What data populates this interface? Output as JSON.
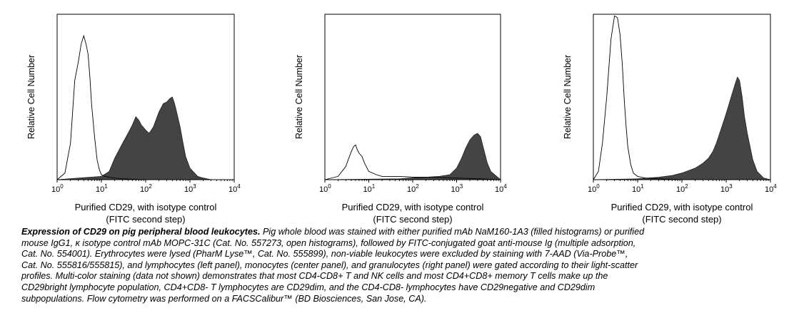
{
  "chart_data": [
    {
      "type": "area",
      "panel": "left",
      "ylabel": "Relative Cell Number",
      "xlabel_line1": "Purified CD29, with isotype control",
      "xlabel_line2": "(FITC second step)",
      "x_scale": "log",
      "xlim": [
        1,
        10000
      ],
      "ylim": [
        0,
        1
      ],
      "x_ticks": [
        {
          "base": "10",
          "exp": "0"
        },
        {
          "base": "10",
          "exp": "1"
        },
        {
          "base": "10",
          "exp": "2"
        },
        {
          "base": "10",
          "exp": "3"
        },
        {
          "base": "10",
          "exp": "4"
        }
      ],
      "series": [
        {
          "role": "isotype-control-open",
          "x": [
            1.0,
            1.5,
            2.0,
            2.5,
            3.0,
            3.5,
            4.0,
            4.5,
            5.0,
            5.5,
            6.0,
            7.0,
            8.0,
            9.0,
            10.0,
            12.0,
            15.0,
            20.0,
            30.0,
            50.0,
            100.0,
            10000.0
          ],
          "y": [
            0.0,
            0.04,
            0.22,
            0.6,
            0.71,
            0.82,
            0.87,
            0.82,
            0.76,
            0.62,
            0.46,
            0.26,
            0.12,
            0.06,
            0.03,
            0.02,
            0.015,
            0.01,
            0.005,
            0.003,
            0.0,
            0.0
          ]
        },
        {
          "role": "cd29-filled",
          "x": [
            1.0,
            10.0,
            15.0,
            20.0,
            30.0,
            40.0,
            50.0,
            60.0,
            70.0,
            80.0,
            100.0,
            120.0,
            150.0,
            200.0,
            250.0,
            300.0,
            350.0,
            400.0,
            450.0,
            500.0,
            600.0,
            700.0,
            800.0,
            1000.0,
            1500.0,
            2000.0,
            3000.0,
            10000.0
          ],
          "y": [
            0.0,
            0.02,
            0.05,
            0.13,
            0.22,
            0.28,
            0.33,
            0.38,
            0.36,
            0.33,
            0.3,
            0.28,
            0.32,
            0.41,
            0.46,
            0.47,
            0.49,
            0.5,
            0.46,
            0.41,
            0.32,
            0.22,
            0.14,
            0.07,
            0.02,
            0.01,
            0.0,
            0.0
          ]
        }
      ]
    },
    {
      "type": "area",
      "panel": "center",
      "ylabel": "Relative Cell Number",
      "xlabel_line1": "Purified CD29, with isotype control",
      "xlabel_line2": "(FITC second step)",
      "x_scale": "log",
      "xlim": [
        1,
        10000
      ],
      "ylim": [
        0,
        1
      ],
      "x_ticks": [
        {
          "base": "10",
          "exp": "0"
        },
        {
          "base": "10",
          "exp": "1"
        },
        {
          "base": "10",
          "exp": "2"
        },
        {
          "base": "10",
          "exp": "3"
        },
        {
          "base": "10",
          "exp": "4"
        }
      ],
      "series": [
        {
          "role": "isotype-control-open",
          "x": [
            1.0,
            2.0,
            3.0,
            3.5,
            4.0,
            4.5,
            5.0,
            5.5,
            6.0,
            7.0,
            8.0,
            10.0,
            15.0,
            20.0,
            50.0,
            100.0,
            300.0,
            1000.0,
            10000.0
          ],
          "y": [
            0.0,
            0.02,
            0.08,
            0.13,
            0.17,
            0.2,
            0.21,
            0.18,
            0.16,
            0.14,
            0.1,
            0.05,
            0.03,
            0.02,
            0.02,
            0.015,
            0.015,
            0.01,
            0.0
          ]
        },
        {
          "role": "cd29-filled",
          "x": [
            1.0,
            50.0,
            100.0,
            200.0,
            400.0,
            700.0,
            1000.0,
            1300.0,
            1600.0,
            2000.0,
            2500.0,
            3000.0,
            3500.0,
            4000.0,
            5000.0,
            6000.0,
            10000.0
          ],
          "y": [
            0.0,
            0.005,
            0.01,
            0.015,
            0.02,
            0.03,
            0.07,
            0.13,
            0.19,
            0.24,
            0.27,
            0.28,
            0.26,
            0.2,
            0.1,
            0.05,
            0.0
          ]
        }
      ]
    },
    {
      "type": "area",
      "panel": "right",
      "ylabel": "Relative Cell Number",
      "xlabel_line1": "Purified CD29, with isotype control",
      "xlabel_line2": "(FITC second step)",
      "x_scale": "log",
      "xlim": [
        1,
        10000
      ],
      "ylim": [
        0,
        1
      ],
      "x_ticks": [
        {
          "base": "10",
          "exp": "0"
        },
        {
          "base": "10",
          "exp": "1"
        },
        {
          "base": "10",
          "exp": "2"
        },
        {
          "base": "10",
          "exp": "3"
        },
        {
          "base": "10",
          "exp": "4"
        }
      ],
      "series": [
        {
          "role": "isotype-control-open",
          "x": [
            1.0,
            1.3,
            1.6,
            2.0,
            2.5,
            3.0,
            3.5,
            4.0,
            4.5,
            5.0,
            5.5,
            6.0,
            7.0,
            8.0,
            10.0,
            15.0,
            30.0,
            100.0,
            10000.0
          ],
          "y": [
            0.0,
            0.05,
            0.22,
            0.5,
            0.85,
            0.99,
            0.98,
            0.88,
            0.7,
            0.48,
            0.32,
            0.2,
            0.09,
            0.04,
            0.02,
            0.01,
            0.005,
            0.0,
            0.0
          ]
        },
        {
          "role": "cd29-filled",
          "x": [
            1.0,
            10.0,
            30.0,
            60.0,
            100.0,
            200.0,
            300.0,
            400.0,
            500.0,
            600.0,
            800.0,
            1000.0,
            1200.0,
            1400.0,
            1600.0,
            1800.0,
            2000.0,
            2300.0,
            2600.0,
            3000.0,
            4000.0,
            5000.0,
            7000.0,
            10000.0
          ],
          "y": [
            0.0,
            0.005,
            0.015,
            0.025,
            0.04,
            0.07,
            0.1,
            0.13,
            0.17,
            0.22,
            0.32,
            0.4,
            0.47,
            0.53,
            0.58,
            0.62,
            0.6,
            0.5,
            0.38,
            0.28,
            0.12,
            0.05,
            0.01,
            0.0
          ]
        }
      ]
    }
  ],
  "caption": {
    "title": "Expression of CD29 on pig peripheral blood leukocytes.",
    "lines": [
      " Pig whole blood was stained with either purified mAb NaM160-1A3 (filled histograms) or purified",
      "mouse IgG1, κ isotype control mAb MOPC-31C (Cat. No. 557273, open histograms), followed by FITC-conjugated goat anti-mouse Ig (multiple adsorption,",
      "Cat. No. 554001). Erythrocytes were lysed (PharM Lyse™, Cat. No. 555899), non-viable leukocytes were excluded by staining with 7-AAD (Via-Probe™,",
      "Cat. No. 555816/555815), and lymphocytes (left panel), monocytes (center panel), and granulocytes (right panel) were gated according to their light-scatter",
      "profiles. Multi-color staining (data not shown) demonstrates that most CD4-CD8+ T and NK cells and most CD4+CD8+ memory T cells make up the",
      "CD29bright lymphocyte population, CD4+CD8- T lymphocytes are CD29dim, and the CD4-CD8- lymphocytes have CD29negative and CD29dim",
      "subpopulations. Flow cytometry was performed on a FACSCalibur™ (BD  Biosciences, San Jose, CA)."
    ]
  },
  "colors": {
    "filled": "#444444",
    "axis": "#000000"
  }
}
